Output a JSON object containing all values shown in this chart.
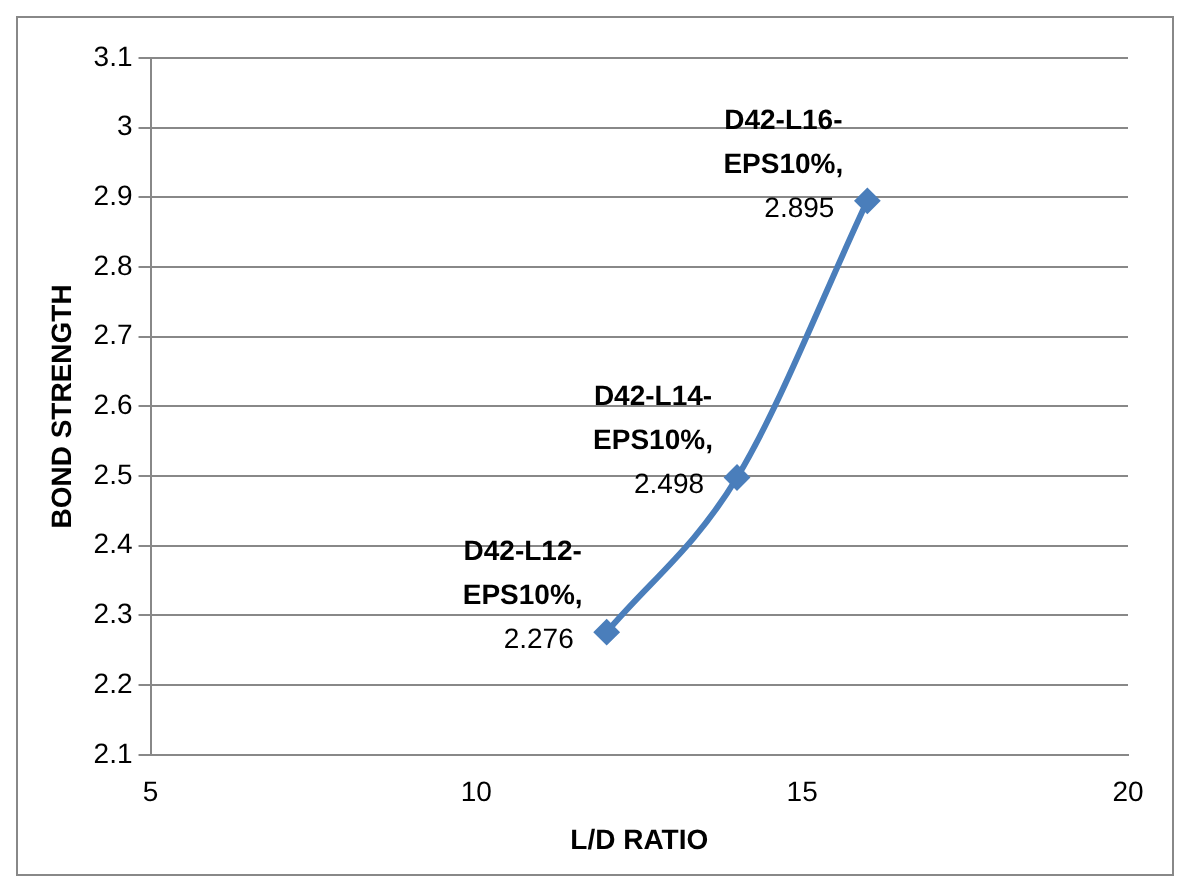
{
  "chart_data": {
    "type": "line",
    "xlabel": "L/D RATIO",
    "ylabel": "BOND STRENGTH",
    "x": [
      12,
      14,
      16
    ],
    "series": [
      {
        "color": "#4a7ebb",
        "values": [
          2.276,
          2.498,
          2.895
        ],
        "value_labels": [
          "D42-L12-EPS10%, 2.276",
          "D42-L14-EPS10%, 2.498",
          "D42-L16-EPS10%, 2.895"
        ]
      }
    ],
    "xlim": [
      5,
      20
    ],
    "xticks": [
      5,
      10,
      15,
      20
    ],
    "ylim": [
      2.1,
      3.1
    ],
    "yticks": [
      2.1,
      2.2,
      2.3,
      2.4,
      2.5,
      2.6,
      2.7,
      2.8,
      2.9,
      3,
      3.1
    ],
    "grid": "y",
    "legend": false,
    "marker": "diamond",
    "line_style": "solid"
  }
}
